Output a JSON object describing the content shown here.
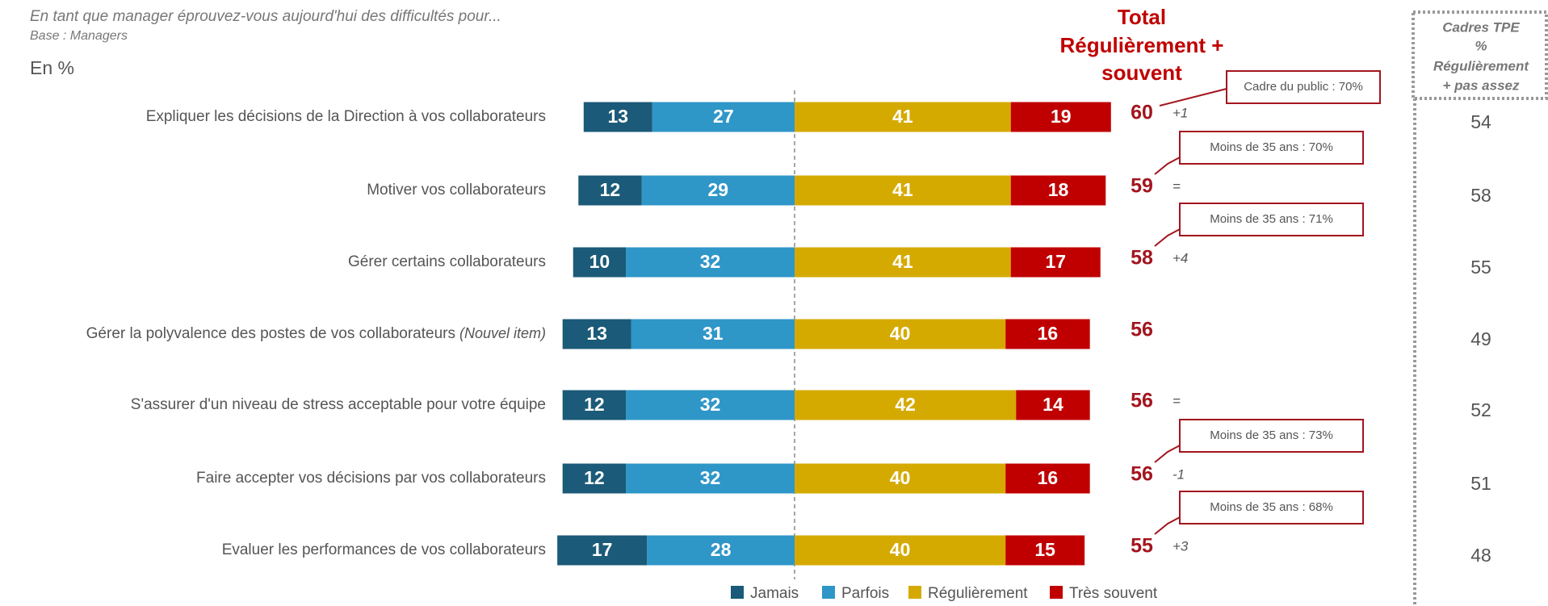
{
  "chart_data": {
    "type": "bar",
    "question": "En tant que manager éprouvez-vous aujourd'hui  des difficultés pour...",
    "base": "Base : Managers",
    "unit": "En %",
    "total_header": [
      "Total",
      "Régulièrement +",
      "souvent"
    ],
    "tpe_header": [
      "Cadres TPE",
      "%",
      "Régulièrement",
      "+ pas assez"
    ],
    "categories": [
      "Expliquer les décisions de la Direction à vos collaborateurs",
      "Motiver vos collaborateurs",
      "Gérer certains collaborateurs",
      "Gérer la polyvalence des postes de vos collaborateurs",
      "S'assurer d'un niveau de stress acceptable pour votre équipe",
      "Faire accepter vos décisions par vos collaborateurs",
      "Evaluer les performances de vos collaborateurs"
    ],
    "category_notes": [
      null,
      null,
      null,
      "(Nouvel item)",
      null,
      null,
      null
    ],
    "series": [
      {
        "name": "Jamais",
        "color": "#1b5a78",
        "values": [
          13,
          12,
          10,
          13,
          12,
          12,
          17
        ]
      },
      {
        "name": "Parfois",
        "color": "#2f96c8",
        "values": [
          27,
          29,
          32,
          31,
          32,
          32,
          28
        ]
      },
      {
        "name": "Régulièrement",
        "color": "#d5aa00",
        "values": [
          41,
          41,
          41,
          40,
          42,
          40,
          40
        ]
      },
      {
        "name": "Très souvent",
        "color": "#c00000",
        "values": [
          19,
          18,
          17,
          16,
          14,
          16,
          15
        ]
      }
    ],
    "totals": [
      60,
      59,
      58,
      56,
      56,
      56,
      55
    ],
    "changes": [
      "+1",
      "=",
      "+4",
      null,
      "=",
      "-1",
      "+3"
    ],
    "callouts": [
      "Cadre du public : 70%",
      "Moins de 35 ans : 70%",
      "Moins de 35 ans : 71%",
      null,
      null,
      "Moins de 35 ans : 73%",
      "Moins de 35 ans : 68%"
    ],
    "tpe_values": [
      54,
      58,
      55,
      49,
      52,
      51,
      48
    ]
  }
}
